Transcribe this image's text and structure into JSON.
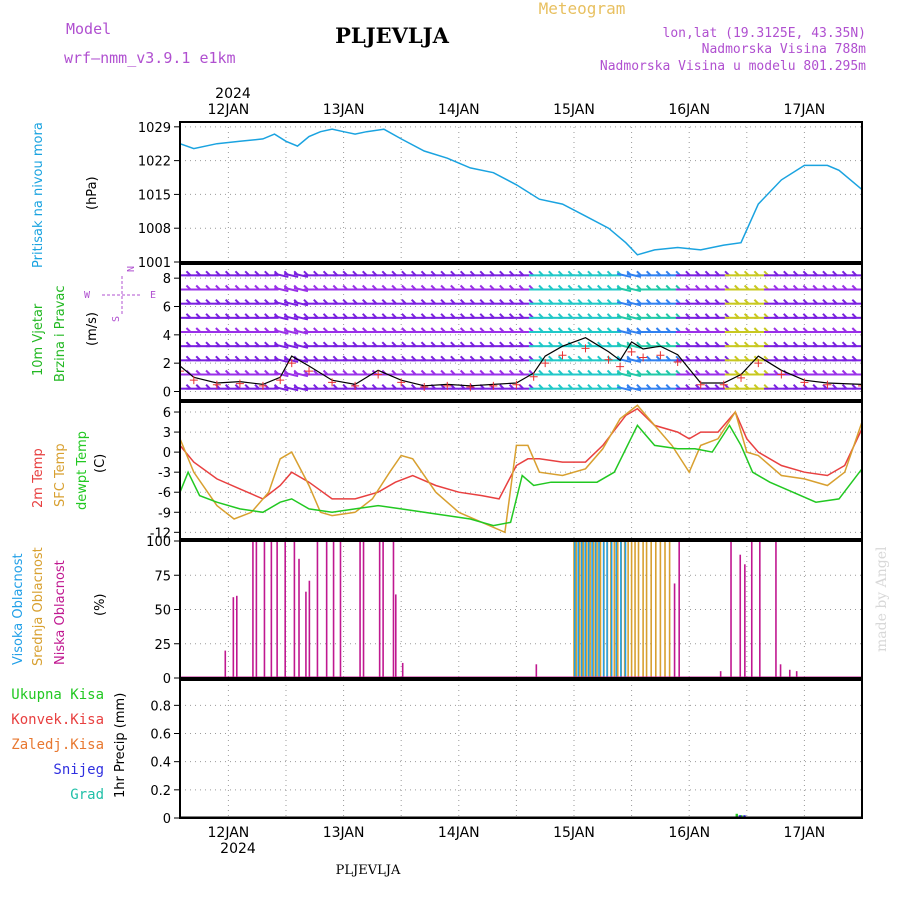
{
  "header": {
    "model_label": "Model",
    "model_value": "wrf–nmm_v3.9.1  e1km",
    "station": "PLJEVLJA",
    "product": "Meteogram",
    "coords": "lon,lat (19.3125E, 43.35N)",
    "elevation": "Nadmorska Visina 788m",
    "model_elevation": "Nadmorska Visina u modelu 801.295m",
    "footer_station": "PLJEVLJA",
    "watermark": "made by Angel",
    "year": "2024"
  },
  "colors": {
    "pressure": "#1aa3e0",
    "wind_label": "#22b822",
    "wind_speed_red": "#e83030",
    "wind_speed_black": "#000000",
    "temp_2m": "#e84040",
    "temp_sfc": "#d8a030",
    "temp_dewpt": "#22c822",
    "cloud_high": "#22a0e8",
    "cloud_mid": "#d8a030",
    "cloud_low": "#c01890",
    "precip_total": "#22c822",
    "precip_conv": "#e84040",
    "precip_frozen": "#e87830",
    "precip_snow": "#3030e0",
    "precip_grad": "#20c0a8",
    "header_purple": "#b050d0",
    "header_orange": "#e8c060"
  },
  "x_axis": {
    "dates": [
      "12JAN",
      "13JAN",
      "14JAN",
      "15JAN",
      "16JAN",
      "17JAN"
    ],
    "day_range": [
      11.58,
      17.5
    ]
  },
  "chart_data": [
    {
      "type": "line",
      "ylabel": "Pritisak na nivou mora",
      "units": "(hPa)",
      "yticks": [
        1001,
        1008,
        1015,
        1022,
        1029
      ],
      "ylim": [
        1001,
        1030
      ],
      "series": [
        {
          "name": "Pritisak na nivou mora",
          "x": [
            11.58,
            11.7,
            11.9,
            12.1,
            12.3,
            12.4,
            12.5,
            12.6,
            12.7,
            12.8,
            12.9,
            13.0,
            13.1,
            13.2,
            13.35,
            13.5,
            13.7,
            13.9,
            14.1,
            14.3,
            14.5,
            14.7,
            14.9,
            15.1,
            15.3,
            15.45,
            15.55,
            15.7,
            15.9,
            16.1,
            16.3,
            16.45,
            16.6,
            16.8,
            17.0,
            17.2,
            17.3,
            17.5
          ],
          "y": [
            1025.5,
            1024.5,
            1025.5,
            1026,
            1026.5,
            1027.5,
            1026,
            1025,
            1027,
            1028,
            1028.5,
            1028,
            1027.5,
            1028,
            1028.5,
            1026.5,
            1024,
            1022.5,
            1020.5,
            1019.5,
            1017,
            1014,
            1013,
            1010.5,
            1008,
            1005,
            1002.5,
            1003.5,
            1004,
            1003.5,
            1004.5,
            1005,
            1013,
            1018,
            1021,
            1021,
            1020,
            1016
          ]
        }
      ]
    },
    {
      "type": "line",
      "ylabel": "10m Vjetar Brzina i Pravac",
      "units": "(m/s)",
      "yticks": [
        0,
        2,
        4,
        6,
        8
      ],
      "ylim": [
        -0.6,
        9.0
      ],
      "compass": {
        "north": "N",
        "south": "S",
        "east": "E",
        "west": "W"
      },
      "series": [
        {
          "name": "Brzina",
          "x": [
            11.58,
            11.7,
            11.9,
            12.1,
            12.3,
            12.45,
            12.55,
            12.7,
            12.9,
            13.1,
            13.3,
            13.5,
            13.7,
            13.9,
            14.1,
            14.3,
            14.5,
            14.65,
            14.75,
            14.9,
            15.1,
            15.3,
            15.4,
            15.5,
            15.6,
            15.75,
            15.9,
            16.1,
            16.3,
            16.45,
            16.6,
            16.8,
            17.0,
            17.2,
            17.5
          ],
          "y": [
            1.8,
            1.0,
            0.6,
            0.7,
            0.5,
            1.0,
            2.5,
            1.8,
            0.8,
            0.5,
            1.5,
            0.8,
            0.4,
            0.5,
            0.4,
            0.5,
            0.6,
            1.3,
            2.5,
            3.2,
            3.8,
            2.8,
            2.2,
            3.5,
            3.0,
            3.2,
            2.6,
            0.6,
            0.6,
            1.2,
            2.5,
            1.5,
            0.8,
            0.6,
            0.5
          ]
        }
      ]
    },
    {
      "type": "line",
      "ylabel": "2m Temp / SFC Temp / dewpt Temp",
      "units": "(C)",
      "yticks": [
        -12,
        -9,
        -6,
        -3,
        0,
        3,
        6
      ],
      "ylim": [
        -13,
        7.5
      ],
      "series": [
        {
          "name": "2m Temp",
          "x": [
            11.58,
            11.7,
            11.9,
            12.1,
            12.3,
            12.45,
            12.55,
            12.7,
            12.9,
            13.1,
            13.3,
            13.45,
            13.6,
            13.8,
            14.0,
            14.2,
            14.35,
            14.5,
            14.6,
            14.7,
            14.9,
            15.1,
            15.25,
            15.45,
            15.55,
            15.7,
            15.9,
            16.0,
            16.1,
            16.25,
            16.4,
            16.5,
            16.6,
            16.8,
            17.0,
            17.2,
            17.35,
            17.5
          ],
          "y": [
            1.0,
            -1.5,
            -4.0,
            -5.5,
            -7.0,
            -5.0,
            -3.0,
            -4.5,
            -7.0,
            -7.0,
            -6.0,
            -4.5,
            -3.5,
            -5.0,
            -6.0,
            -6.5,
            -7.0,
            -2.0,
            -1.0,
            -1.0,
            -1.5,
            -1.5,
            1.0,
            5.5,
            6.5,
            4.0,
            3.0,
            2.0,
            3.0,
            3.0,
            6.0,
            2.0,
            0.0,
            -2.0,
            -3.0,
            -3.5,
            -2.0,
            3.5
          ]
        },
        {
          "name": "SFC Temp",
          "x": [
            11.58,
            11.7,
            11.9,
            12.05,
            12.2,
            12.35,
            12.45,
            12.55,
            12.7,
            12.8,
            12.9,
            13.1,
            13.25,
            13.4,
            13.5,
            13.6,
            13.8,
            14.0,
            14.2,
            14.4,
            14.5,
            14.6,
            14.7,
            14.9,
            15.1,
            15.25,
            15.4,
            15.55,
            15.7,
            15.85,
            16.0,
            16.1,
            16.25,
            16.4,
            16.5,
            16.6,
            16.8,
            17.0,
            17.2,
            17.35,
            17.5
          ],
          "y": [
            2.0,
            -3.0,
            -8.0,
            -10.0,
            -9.0,
            -6.0,
            -1.0,
            0.0,
            -5.0,
            -9.0,
            -9.5,
            -9.0,
            -7.0,
            -3.0,
            -0.5,
            -1.0,
            -6.0,
            -9.0,
            -10.5,
            -12.0,
            1.0,
            1.0,
            -3.0,
            -3.5,
            -2.5,
            0.5,
            5.0,
            7.0,
            4.0,
            1.0,
            -3.0,
            1.0,
            2.0,
            6.0,
            0.0,
            -0.5,
            -3.5,
            -4.0,
            -5.0,
            -3.0,
            4.5
          ]
        },
        {
          "name": "dewpt Temp",
          "x": [
            11.58,
            11.65,
            11.75,
            11.9,
            12.1,
            12.3,
            12.45,
            12.55,
            12.7,
            12.9,
            13.1,
            13.3,
            13.5,
            13.7,
            13.9,
            14.1,
            14.3,
            14.45,
            14.55,
            14.65,
            14.8,
            15.0,
            15.2,
            15.35,
            15.55,
            15.7,
            15.9,
            16.05,
            16.2,
            16.35,
            16.45,
            16.55,
            16.7,
            16.9,
            17.1,
            17.3,
            17.5
          ],
          "y": [
            -6.0,
            -3.0,
            -6.5,
            -7.5,
            -8.5,
            -9.0,
            -7.5,
            -7.0,
            -8.5,
            -9.0,
            -8.5,
            -8.0,
            -8.5,
            -9.0,
            -9.5,
            -10.0,
            -11.0,
            -10.5,
            -3.5,
            -5.0,
            -4.5,
            -4.5,
            -4.5,
            -3.0,
            4.0,
            1.0,
            0.5,
            0.5,
            0.0,
            4.0,
            1.0,
            -3.0,
            -4.5,
            -6.0,
            -7.5,
            -7.0,
            -2.5
          ]
        }
      ]
    },
    {
      "type": "bar",
      "ylabel": "Visoka Oblacnost / Srednja Oblacnost / Niska Oblacnost",
      "units": "(%)",
      "yticks": [
        0,
        25,
        50,
        75,
        100
      ],
      "ylim": [
        0,
        100
      ],
      "series": [
        {
          "name": "Niska Oblacnost",
          "x": [
            11.98,
            12.05,
            12.08,
            12.22,
            12.25,
            12.32,
            12.38,
            12.43,
            12.5,
            12.58,
            12.62,
            12.68,
            12.71,
            12.78,
            12.86,
            12.92,
            12.98,
            13.15,
            13.18,
            13.32,
            13.35,
            13.44,
            13.46,
            13.52,
            14.68,
            15.88,
            15.92,
            16.28,
            16.37,
            16.45,
            16.49,
            16.55,
            16.62,
            16.76,
            16.8,
            16.88,
            16.94
          ],
          "y": [
            20,
            59,
            60,
            100,
            100,
            100,
            100,
            100,
            100,
            100,
            87,
            63,
            71,
            100,
            100,
            100,
            100,
            100,
            100,
            100,
            100,
            100,
            61,
            11,
            10,
            69,
            100,
            5,
            100,
            90,
            83,
            100,
            100,
            100,
            10,
            6,
            5
          ]
        },
        {
          "name": "Srednja Oblacnost",
          "x": [
            15.0,
            15.02,
            15.05,
            15.08,
            15.11,
            15.14,
            15.17,
            15.2,
            15.23,
            15.26,
            15.29,
            15.32,
            15.35,
            15.38,
            15.41,
            15.44,
            15.47,
            15.5,
            15.53,
            15.56,
            15.6,
            15.63,
            15.67,
            15.71,
            15.75,
            15.79,
            15.83
          ],
          "y": [
            100,
            100,
            100,
            100,
            100,
            100,
            100,
            100,
            100,
            100,
            100,
            100,
            100,
            100,
            100,
            100,
            100,
            100,
            100,
            100,
            100,
            100,
            100,
            100,
            100,
            100,
            100
          ]
        },
        {
          "name": "Visoka Oblacnost",
          "x": [
            15.0,
            15.03,
            15.06,
            15.09,
            15.12,
            15.15,
            15.18,
            15.21,
            15.25,
            15.28,
            15.32,
            15.36,
            15.4,
            15.44
          ],
          "y": [
            100,
            100,
            100,
            100,
            100,
            100,
            100,
            100,
            100,
            100,
            100,
            100,
            100,
            100
          ]
        }
      ]
    },
    {
      "type": "bar",
      "ylabel": "1hr Precip",
      "units": "(mm)",
      "yticks": [
        0,
        0.2,
        0.4,
        0.6,
        0.8
      ],
      "ylim": [
        0,
        0.98
      ],
      "legend": [
        "Ukupna Kisa",
        "Konvek.Kisa",
        "Zaledj.Kisa",
        "Snijeg",
        "Grad"
      ],
      "series": [
        {
          "name": "Ukupna Kisa",
          "x": [
            16.42,
            16.46,
            16.5
          ],
          "y": [
            0.03,
            0.02,
            0.01
          ]
        },
        {
          "name": "Snijeg",
          "x": [
            16.44,
            16.48,
            16.52
          ],
          "y": [
            0.02,
            0.02,
            0.01
          ]
        }
      ]
    }
  ]
}
